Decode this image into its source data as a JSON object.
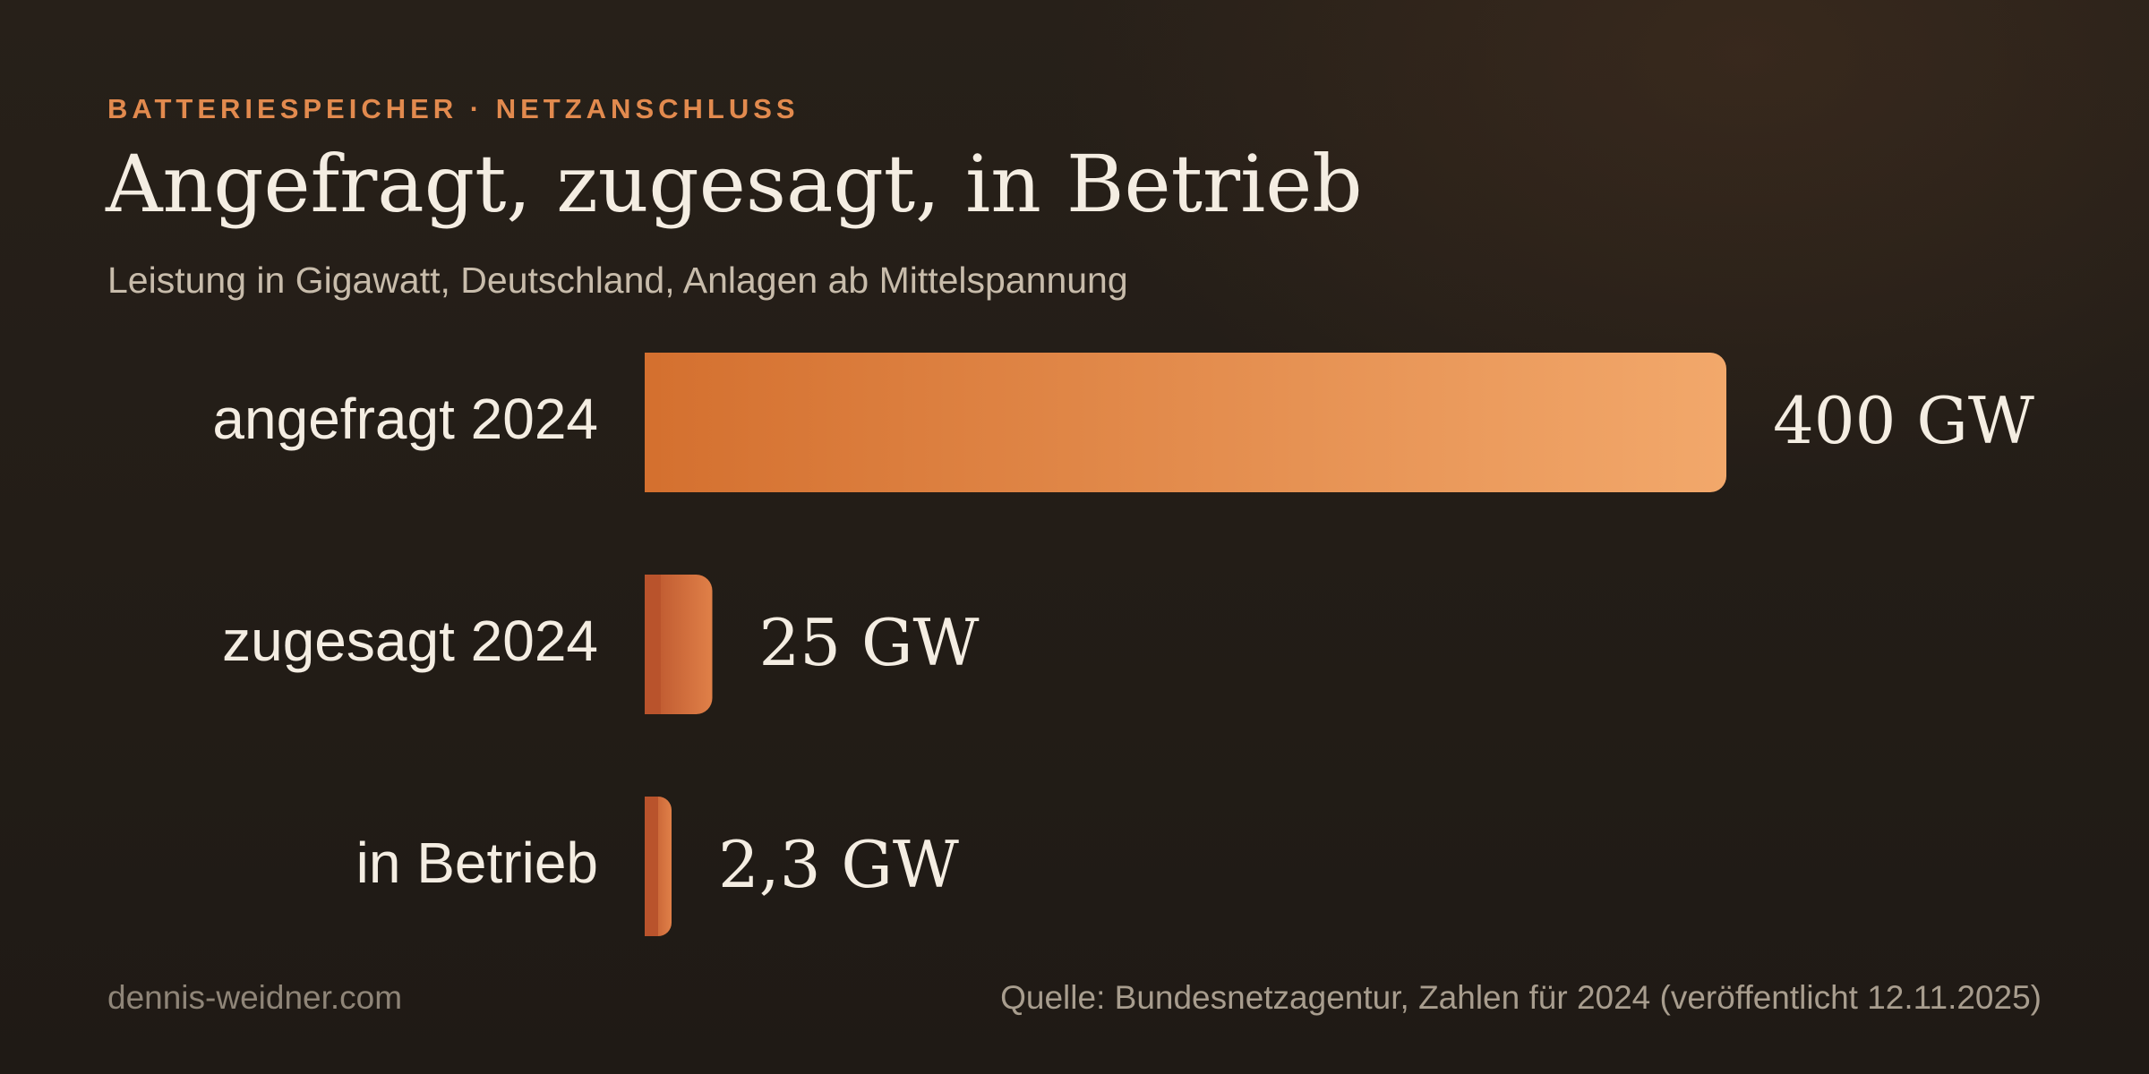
{
  "header": {
    "kicker": "BATTERIESPEICHER · NETZANSCHLUSS",
    "title": "Angefragt, zugesagt, in Betrieb",
    "subtitle": "Leistung in Gigawatt, Deutschland, Anlagen ab Mittelspannung"
  },
  "chart_data": {
    "type": "bar",
    "orientation": "horizontal",
    "title": "Angefragt, zugesagt, in Betrieb",
    "subtitle": "Leistung in Gigawatt, Deutschland, Anlagen ab Mittelspannung",
    "categories": [
      "angefragt 2024",
      "zugesagt 2024",
      "in Betrieb"
    ],
    "values": [
      400,
      25,
      2.3
    ],
    "value_labels": [
      "400 GW",
      "25 GW",
      "2,3 GW"
    ],
    "unit": "GW",
    "xlim": [
      0,
      400
    ],
    "grid": false,
    "legend": "none",
    "colors": {
      "bar_start": "#d4702f",
      "bar_end": "#f2a86b",
      "small_bar_start": "#b9532c",
      "small_bar_end": "#e08048",
      "category_label": "#f4ede2",
      "value_label": "#f4ede2"
    }
  },
  "footer": {
    "credit": "dennis-weidner.com",
    "source": "Quelle: Bundesnetzagentur, Zahlen für 2024 (veröffentlicht 12.11.2025)"
  }
}
